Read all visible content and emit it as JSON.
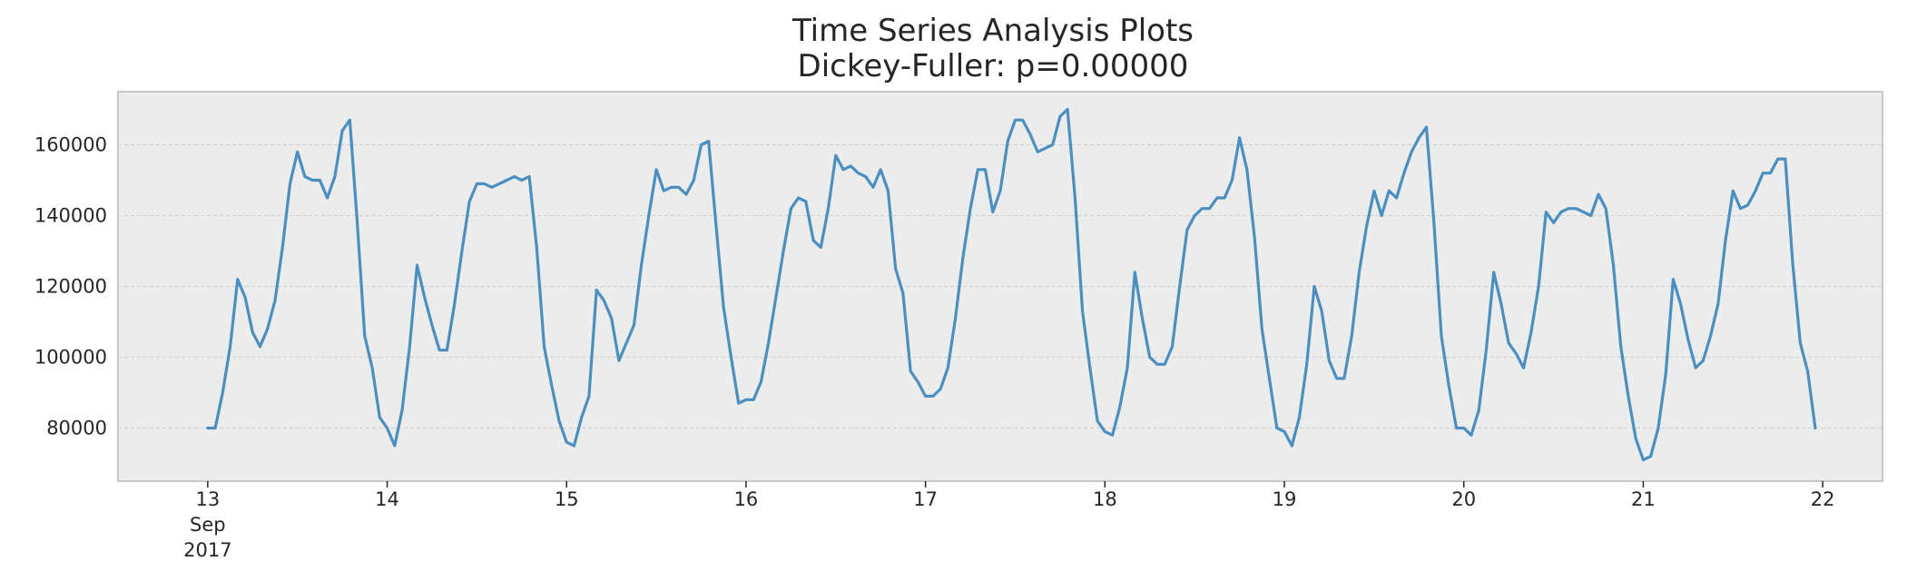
{
  "chart_data": {
    "type": "line",
    "title": "Time Series Analysis Plots",
    "subtitle": "Dickey-Fuller: p=0.00000",
    "xlabel": "",
    "ylabel": "",
    "grid": true,
    "x_start": "2017-09-13 00:00",
    "x_step_hours": 1,
    "xlim": [
      "2017-09-12 12:00",
      "2017-09-22 08:00"
    ],
    "ylim": [
      65000,
      175000
    ],
    "x_ticks": [
      {
        "date": "2017-09-13",
        "label": "13",
        "sub": [
          "Sep",
          "2017"
        ]
      },
      {
        "date": "2017-09-14",
        "label": "14",
        "sub": []
      },
      {
        "date": "2017-09-15",
        "label": "15",
        "sub": []
      },
      {
        "date": "2017-09-16",
        "label": "16",
        "sub": []
      },
      {
        "date": "2017-09-17",
        "label": "17",
        "sub": []
      },
      {
        "date": "2017-09-18",
        "label": "18",
        "sub": []
      },
      {
        "date": "2017-09-19",
        "label": "19",
        "sub": []
      },
      {
        "date": "2017-09-20",
        "label": "20",
        "sub": []
      },
      {
        "date": "2017-09-21",
        "label": "21",
        "sub": []
      },
      {
        "date": "2017-09-22",
        "label": "22",
        "sub": []
      }
    ],
    "y_ticks": [
      {
        "value": 80000,
        "label": "80000"
      },
      {
        "value": 100000,
        "label": "100000"
      },
      {
        "value": 120000,
        "label": "120000"
      },
      {
        "value": 140000,
        "label": "140000"
      },
      {
        "value": 160000,
        "label": "160000"
      }
    ],
    "series": [
      {
        "color": "#4a8fbf",
        "values": [
          80000,
          80000,
          90000,
          103000,
          122000,
          117000,
          107000,
          103000,
          108000,
          116000,
          131000,
          149000,
          158000,
          151000,
          150000,
          150000,
          145000,
          151000,
          164000,
          167000,
          138000,
          106000,
          97000,
          83000,
          80000,
          75000,
          85000,
          103000,
          126000,
          117000,
          109000,
          102000,
          102000,
          115000,
          130000,
          144000,
          149000,
          149000,
          148000,
          149000,
          150000,
          151000,
          150000,
          151000,
          131000,
          103000,
          92000,
          82000,
          76000,
          75000,
          83000,
          89000,
          119000,
          116000,
          111000,
          99000,
          104000,
          109000,
          126000,
          140000,
          153000,
          147000,
          148000,
          148000,
          146000,
          150000,
          160000,
          161000,
          137000,
          114000,
          100000,
          87000,
          88000,
          88000,
          93000,
          104000,
          117000,
          130000,
          142000,
          145000,
          144000,
          133000,
          131000,
          142000,
          157000,
          153000,
          154000,
          152000,
          151000,
          148000,
          153000,
          147000,
          125000,
          118000,
          96000,
          93000,
          89000,
          89000,
          91000,
          97000,
          111000,
          128000,
          142000,
          153000,
          153000,
          141000,
          147000,
          161000,
          167000,
          167000,
          163000,
          158000,
          159000,
          160000,
          168000,
          170000,
          145000,
          113000,
          97000,
          82000,
          79000,
          78000,
          86000,
          97000,
          124000,
          111000,
          100000,
          98000,
          98000,
          103000,
          120000,
          136000,
          140000,
          142000,
          142000,
          145000,
          145000,
          150000,
          162000,
          153000,
          134000,
          108000,
          94000,
          80000,
          79000,
          75000,
          83000,
          98000,
          120000,
          113000,
          99000,
          94000,
          94000,
          106000,
          124000,
          137000,
          147000,
          140000,
          147000,
          145000,
          152000,
          158000,
          162000,
          165000,
          138000,
          106000,
          92000,
          80000,
          80000,
          78000,
          85000,
          102000,
          124000,
          115000,
          104000,
          101000,
          97000,
          107000,
          120000,
          141000,
          138000,
          141000,
          142000,
          142000,
          141000,
          140000,
          146000,
          142000,
          126000,
          103000,
          89000,
          77000,
          71000,
          72000,
          80000,
          95000,
          122000,
          115000,
          105000,
          97000,
          99000,
          106000,
          115000,
          133000,
          147000,
          142000,
          143000,
          147000,
          152000,
          152000,
          156000,
          156000,
          126000,
          104000,
          96000,
          80000
        ]
      }
    ]
  }
}
